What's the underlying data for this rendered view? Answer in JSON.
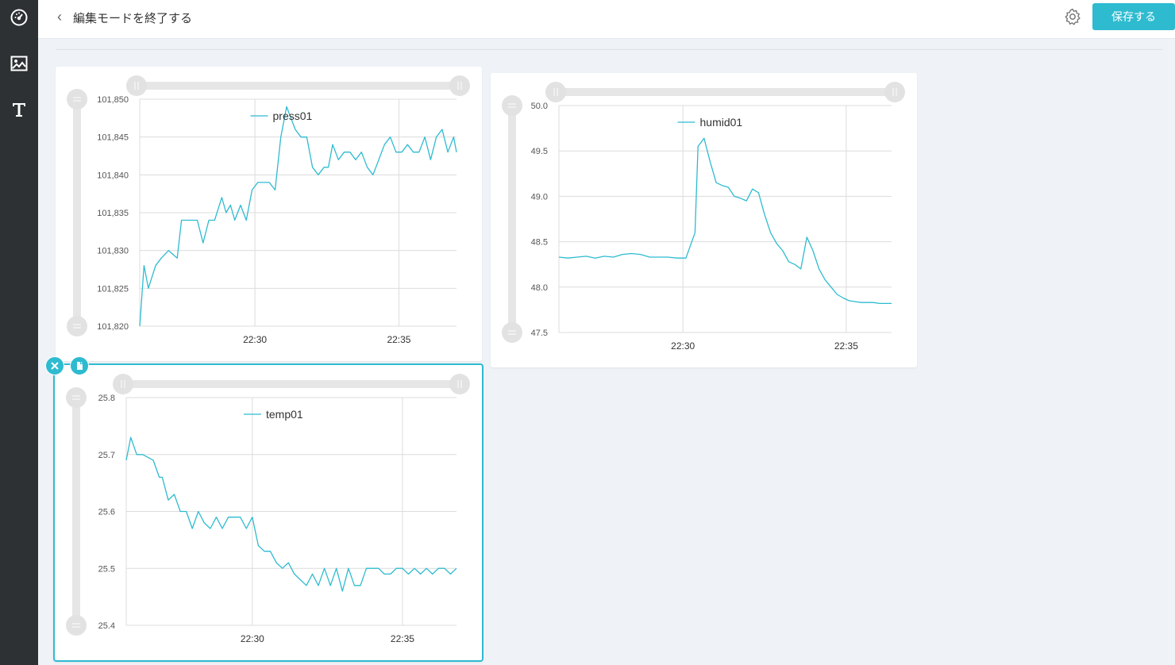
{
  "topbar": {
    "back_label": "編集モードを終了する",
    "save_label": "保存する"
  },
  "sidebar": {
    "items": [
      {
        "icon": "dashboard-icon"
      },
      {
        "icon": "image-icon"
      },
      {
        "icon": "text-icon"
      }
    ]
  },
  "colors": {
    "accent": "#2ebbd0",
    "sidebar": "#2d3133",
    "background": "#eff2f6",
    "line": "#2ebbd0"
  },
  "selected_card_actions": {
    "close_icon": "close-icon",
    "copy_icon": "copy-icon"
  },
  "chart_data": [
    {
      "type": "line",
      "legend": "press01",
      "x_tick_labels": [
        "22:30",
        "22:35"
      ],
      "y_tick_labels": [
        "101,850",
        "101,845",
        "101,840",
        "101,835",
        "101,830",
        "101,825",
        "101,820"
      ],
      "ylim": [
        101820,
        101850
      ],
      "xlim": [
        0,
        11
      ],
      "grid": true,
      "legend_position": "top-center",
      "series": [
        {
          "x": [
            0,
            0.15,
            0.3,
            0.55,
            0.75,
            1.0,
            1.3,
            1.45,
            1.6,
            1.75,
            2.0,
            2.2,
            2.4,
            2.6,
            2.85,
            3.0,
            3.15,
            3.3,
            3.5,
            3.7,
            3.9,
            4.1,
            4.3,
            4.5,
            4.7,
            4.9,
            5.1,
            5.4,
            5.6,
            5.8,
            6.0,
            6.2,
            6.4,
            6.55,
            6.7,
            6.9,
            7.1,
            7.3,
            7.5,
            7.7,
            7.9,
            8.1,
            8.3,
            8.5,
            8.7,
            8.9,
            9.1,
            9.3,
            9.5,
            9.7,
            9.9,
            10.1,
            10.3,
            10.5,
            10.7,
            10.9,
            11.0
          ],
          "y": [
            101820,
            101828,
            101825,
            101828,
            101829,
            101830,
            101829,
            101834,
            101834,
            101834,
            101834,
            101831,
            101834,
            101834,
            101837,
            101835,
            101836,
            101834,
            101836,
            101834,
            101838,
            101839,
            101839,
            101839,
            101838,
            101845,
            101849,
            101846,
            101845,
            101845,
            101841,
            101840,
            101841,
            101841,
            101844,
            101842,
            101843,
            101843,
            101842,
            101843,
            101841,
            101840,
            101842,
            101844,
            101845,
            101843,
            101843,
            101844,
            101843,
            101843,
            101845,
            101842,
            101845,
            101846,
            101843,
            101845,
            101843
          ]
        }
      ]
    },
    {
      "type": "line",
      "legend": "humid01",
      "x_tick_labels": [
        "22:30",
        "22:35"
      ],
      "y_tick_labels": [
        "50.0",
        "49.5",
        "49.0",
        "48.5",
        "48.0",
        "47.5"
      ],
      "ylim": [
        47.5,
        50.0
      ],
      "xlim": [
        0,
        11
      ],
      "grid": true,
      "legend_position": "top-center",
      "series": [
        {
          "x": [
            0,
            0.3,
            0.6,
            0.9,
            1.2,
            1.5,
            1.8,
            2.1,
            2.4,
            2.7,
            3.0,
            3.3,
            3.6,
            3.9,
            4.2,
            4.5,
            4.6,
            4.8,
            5.0,
            5.2,
            5.4,
            5.6,
            5.8,
            6.0,
            6.2,
            6.4,
            6.6,
            6.8,
            7.0,
            7.2,
            7.4,
            7.6,
            7.8,
            8.0,
            8.2,
            8.4,
            8.6,
            8.8,
            9.0,
            9.2,
            9.4,
            9.6,
            9.8,
            10.0,
            10.2,
            10.4,
            10.6,
            10.8,
            11.0
          ],
          "y": [
            48.33,
            48.32,
            48.33,
            48.34,
            48.32,
            48.34,
            48.33,
            48.36,
            48.37,
            48.36,
            48.33,
            48.33,
            48.33,
            48.32,
            48.32,
            48.6,
            49.55,
            49.64,
            49.38,
            49.15,
            49.12,
            49.1,
            49.0,
            48.98,
            48.95,
            49.08,
            49.04,
            48.8,
            48.6,
            48.48,
            48.4,
            48.28,
            48.25,
            48.2,
            48.55,
            48.4,
            48.2,
            48.08,
            48.0,
            47.92,
            47.88,
            47.85,
            47.84,
            47.83,
            47.83,
            47.83,
            47.82,
            47.82,
            47.82
          ]
        }
      ]
    },
    {
      "type": "line",
      "legend": "temp01",
      "x_tick_labels": [
        "22:30",
        "22:35"
      ],
      "y_tick_labels": [
        "25.8",
        "25.7",
        "25.6",
        "25.5",
        "25.4"
      ],
      "ylim": [
        25.4,
        25.8
      ],
      "xlim": [
        0,
        11
      ],
      "grid": true,
      "legend_position": "top-center",
      "series": [
        {
          "x": [
            0,
            0.15,
            0.35,
            0.55,
            0.9,
            1.1,
            1.2,
            1.4,
            1.6,
            1.8,
            2.0,
            2.2,
            2.4,
            2.6,
            2.8,
            3.0,
            3.2,
            3.4,
            3.6,
            3.8,
            4.0,
            4.2,
            4.4,
            4.6,
            4.8,
            5.0,
            5.2,
            5.4,
            5.6,
            5.8,
            6.0,
            6.2,
            6.4,
            6.6,
            6.8,
            7.0,
            7.2,
            7.4,
            7.6,
            7.8,
            8.0,
            8.2,
            8.4,
            8.6,
            8.8,
            9.0,
            9.2,
            9.4,
            9.6,
            9.8,
            10.0,
            10.2,
            10.4,
            10.6,
            10.8,
            11.0
          ],
          "y": [
            25.69,
            25.73,
            25.7,
            25.7,
            25.69,
            25.66,
            25.66,
            25.62,
            25.63,
            25.6,
            25.6,
            25.57,
            25.6,
            25.58,
            25.57,
            25.59,
            25.57,
            25.59,
            25.59,
            25.59,
            25.57,
            25.59,
            25.54,
            25.53,
            25.53,
            25.51,
            25.5,
            25.51,
            25.49,
            25.48,
            25.47,
            25.49,
            25.47,
            25.5,
            25.47,
            25.5,
            25.46,
            25.5,
            25.47,
            25.47,
            25.5,
            25.5,
            25.5,
            25.49,
            25.49,
            25.5,
            25.5,
            25.49,
            25.5,
            25.49,
            25.5,
            25.49,
            25.5,
            25.5,
            25.49,
            25.5
          ]
        }
      ]
    }
  ]
}
